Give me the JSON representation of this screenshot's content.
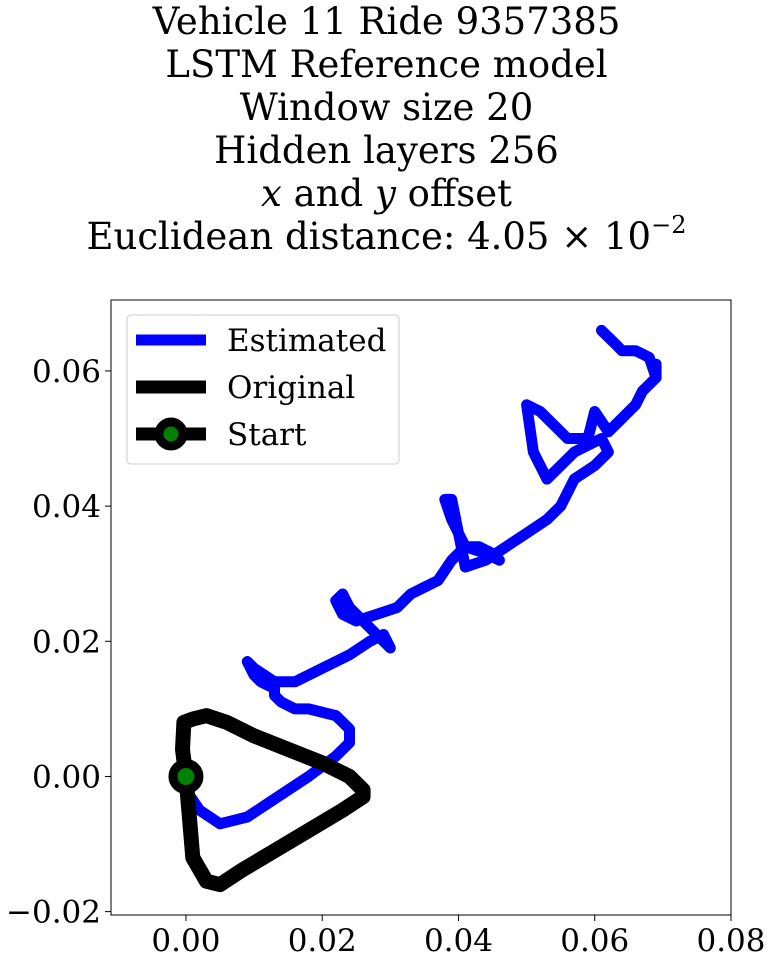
{
  "title": {
    "line1": "Vehicle 11 Ride 9357385",
    "line2": "LSTM Reference model",
    "line3": "Window size 20",
    "line4": "Hidden layers 256",
    "line5_x": "x",
    "line5_and": " and ",
    "line5_y": "y",
    "line5_rest": " offset",
    "line6_prefix": "Euclidean distance: ",
    "line6_mantissa": "4.05",
    "line6_times": " × ",
    "line6_base": "10",
    "line6_exp": "−2"
  },
  "chart_data": {
    "type": "line",
    "xlim": [
      -0.011,
      0.08
    ],
    "ylim": [
      -0.0205,
      0.0705
    ],
    "xticks": [
      0.0,
      0.02,
      0.04,
      0.06,
      0.08
    ],
    "yticks": [
      -0.02,
      0.0,
      0.02,
      0.04,
      0.06
    ],
    "xtick_labels": [
      "0.00",
      "0.02",
      "0.04",
      "0.06",
      "0.08"
    ],
    "ytick_labels": [
      "−0.02",
      "0.00",
      "0.02",
      "0.04",
      "0.06"
    ],
    "grid": false,
    "legend_position": "top-left",
    "legend": [
      {
        "label": "Estimated",
        "color": "#0000ff",
        "marker": "none"
      },
      {
        "label": "Original",
        "color": "#000000",
        "marker": "none"
      },
      {
        "label": "Start",
        "color": "#000000",
        "marker": "circle",
        "marker_face": "#008000"
      }
    ],
    "series": [
      {
        "name": "Estimated",
        "color": "#0000ff",
        "x": [
          0.0,
          0.002,
          0.005,
          0.009,
          0.012,
          0.015,
          0.018,
          0.022,
          0.024,
          0.024,
          0.022,
          0.018,
          0.016,
          0.014,
          0.013,
          0.013,
          0.011,
          0.01,
          0.009,
          0.01,
          0.013,
          0.016,
          0.02,
          0.024,
          0.027,
          0.029,
          0.03,
          0.028,
          0.026,
          0.024,
          0.023,
          0.022,
          0.023,
          0.025,
          0.028,
          0.031,
          0.033,
          0.035,
          0.037,
          0.039,
          0.041,
          0.043,
          0.045,
          0.046,
          0.044,
          0.041,
          0.04,
          0.039,
          0.038,
          0.039,
          0.041,
          0.044,
          0.047,
          0.05,
          0.053,
          0.055,
          0.057,
          0.06,
          0.062,
          0.061,
          0.057,
          0.055,
          0.053,
          0.051,
          0.05,
          0.052,
          0.056,
          0.059,
          0.06,
          0.062,
          0.064,
          0.066,
          0.067,
          0.068,
          0.069,
          0.069,
          0.069,
          0.068,
          0.066,
          0.064,
          0.063,
          0.062,
          0.061
        ],
        "y": [
          -0.002,
          -0.005,
          -0.007,
          -0.006,
          -0.004,
          -0.002,
          0.0,
          0.003,
          0.005,
          0.007,
          0.009,
          0.01,
          0.01,
          0.011,
          0.012,
          0.013,
          0.014,
          0.015,
          0.017,
          0.016,
          0.014,
          0.014,
          0.016,
          0.018,
          0.02,
          0.021,
          0.019,
          0.021,
          0.023,
          0.025,
          0.027,
          0.026,
          0.024,
          0.023,
          0.024,
          0.025,
          0.027,
          0.028,
          0.029,
          0.032,
          0.034,
          0.034,
          0.033,
          0.032,
          0.033,
          0.034,
          0.036,
          0.038,
          0.041,
          0.041,
          0.031,
          0.032,
          0.034,
          0.036,
          0.038,
          0.04,
          0.044,
          0.046,
          0.048,
          0.05,
          0.048,
          0.046,
          0.044,
          0.048,
          0.055,
          0.054,
          0.05,
          0.05,
          0.054,
          0.051,
          0.053,
          0.055,
          0.057,
          0.058,
          0.059,
          0.061,
          0.059,
          0.062,
          0.063,
          0.063,
          0.064,
          0.065,
          0.066
        ]
      },
      {
        "name": "Original",
        "color": "#000000",
        "x": [
          0.0,
          -0.0005,
          -0.0003,
          0.001,
          0.003,
          0.006,
          0.01,
          0.015,
          0.02,
          0.024,
          0.026,
          0.026,
          0.023,
          0.018,
          0.013,
          0.008,
          0.005,
          0.003,
          0.001,
          0.0005,
          0.0
        ],
        "y": [
          0.0,
          0.004,
          0.008,
          0.0085,
          0.009,
          0.008,
          0.006,
          0.004,
          0.002,
          0.0,
          -0.002,
          -0.003,
          -0.005,
          -0.008,
          -0.011,
          -0.014,
          -0.016,
          -0.0155,
          -0.012,
          -0.006,
          0.0
        ]
      }
    ],
    "start_point": {
      "x": 0.0,
      "y": 0.0,
      "label": "Start",
      "marker_face": "#008000",
      "marker_edge": "#000000"
    }
  }
}
